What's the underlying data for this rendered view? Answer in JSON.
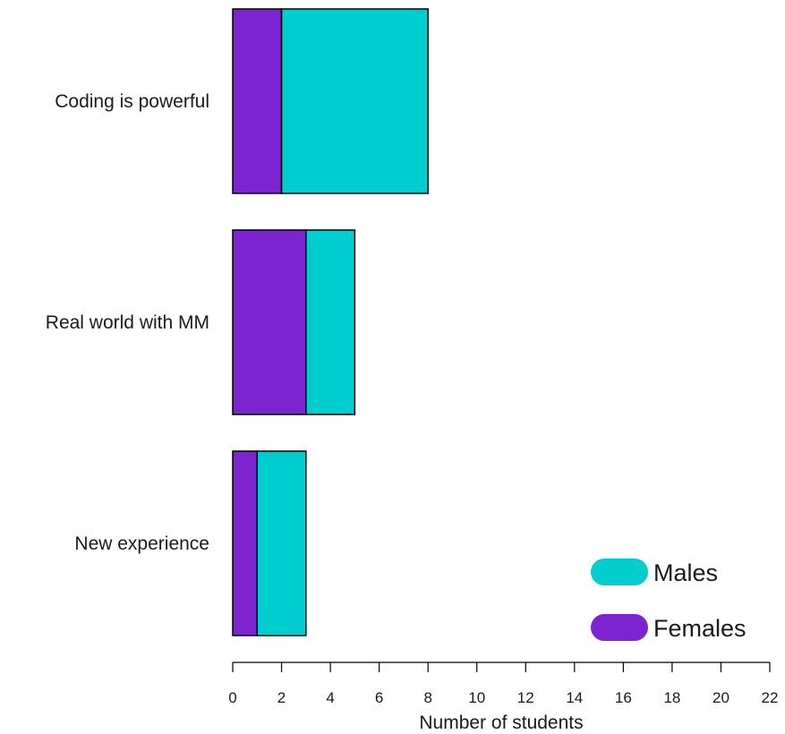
{
  "chart_data": {
    "type": "bar",
    "orientation": "horizontal",
    "stacked": true,
    "categories": [
      "Coding is powerful",
      "Real world with MM",
      "New experience"
    ],
    "series": [
      {
        "name": "Females",
        "values": [
          2,
          3,
          1
        ],
        "color": "#7b24cf"
      },
      {
        "name": "Males",
        "values": [
          6,
          2,
          2
        ],
        "color": "#00cdcd"
      }
    ],
    "title": "",
    "xlabel": "Number of students",
    "ylabel": "",
    "xlim": [
      0,
      22
    ],
    "xticks": [
      "0",
      "2",
      "4",
      "6",
      "8",
      "10",
      "12",
      "14",
      "16",
      "18",
      "20",
      "22"
    ],
    "grid": false,
    "legend": {
      "position": "bottom-right",
      "entries": [
        "Males",
        "Females"
      ]
    }
  }
}
